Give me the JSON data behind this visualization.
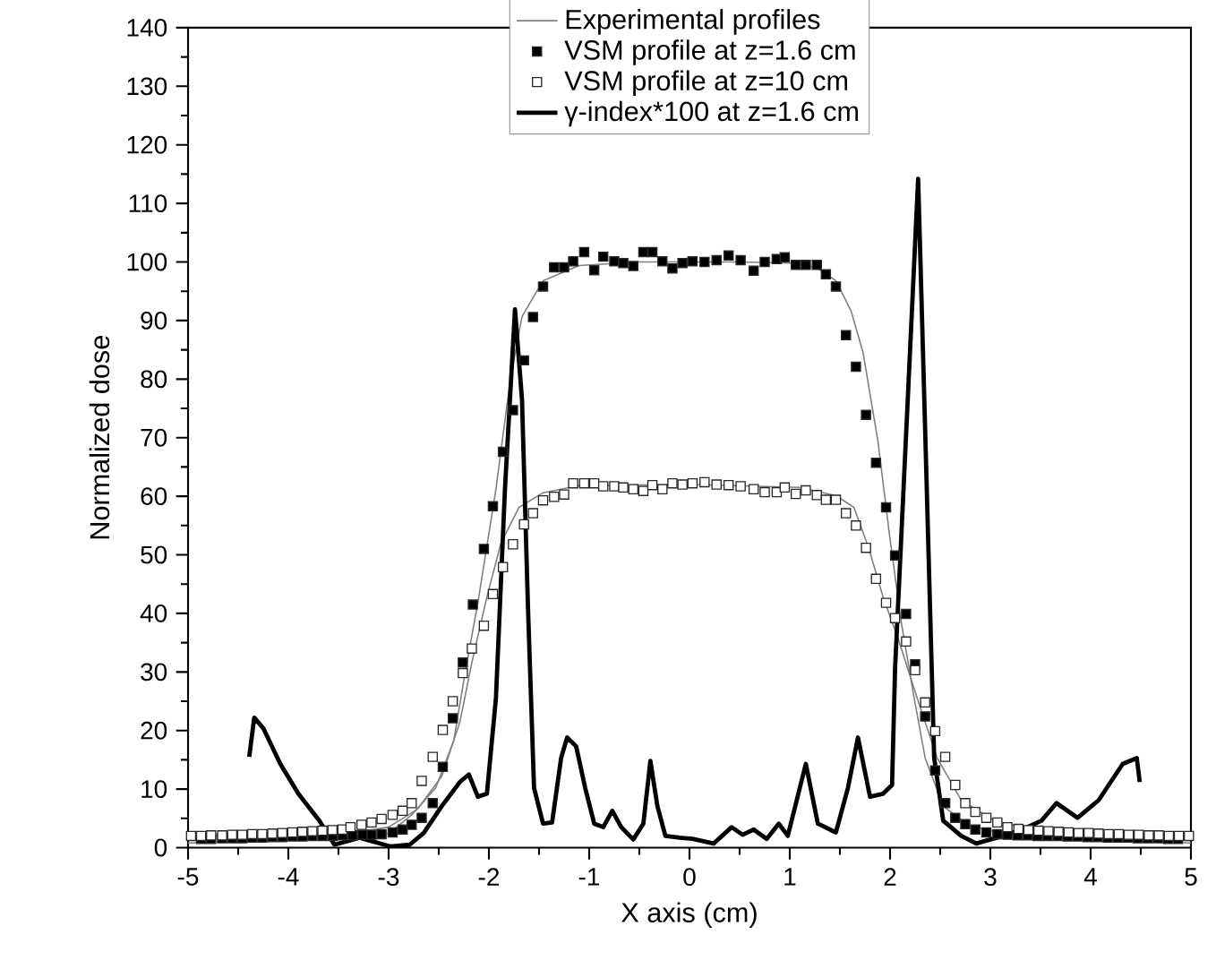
{
  "chart_data": {
    "type": "line",
    "xlabel": "X axis (cm)",
    "ylabel": "Normalized dose",
    "xlim": [
      -5,
      5
    ],
    "ylim": [
      0,
      140
    ],
    "xticks": [
      -5,
      -4,
      -3,
      -2,
      -1,
      0,
      1,
      2,
      3,
      4,
      5
    ],
    "yticks": [
      0,
      10,
      20,
      30,
      40,
      50,
      60,
      70,
      80,
      90,
      100,
      110,
      120,
      130,
      140
    ],
    "grid": false,
    "legend": "top",
    "series": [
      {
        "name": "Experimental profiles",
        "color": "#808080",
        "x": [
          -5,
          -4,
          -3.5,
          -3,
          -2.77,
          -2.53,
          -2.35,
          -2.23,
          -2.11,
          -1.93,
          -1.79,
          -1.67,
          -1.46,
          -1.1,
          -0.5,
          0.5,
          1.0,
          1.27,
          1.46,
          1.61,
          1.73,
          1.88,
          1.99,
          2.11,
          2.23,
          2.35,
          2.53,
          2.77,
          3.07,
          3.5,
          4,
          5
        ],
        "values": [
          0.8,
          1.3,
          1.8,
          2.4,
          5.6,
          10.2,
          18.3,
          30.6,
          41.8,
          61.2,
          79.5,
          90.7,
          96.8,
          99.4,
          100,
          100,
          99.8,
          99,
          96.8,
          91.7,
          84.6,
          69.3,
          54,
          38.7,
          26.5,
          15.3,
          7.1,
          3.9,
          2.6,
          2,
          1.4,
          0.8
        ]
      },
      {
        "color": "#808080",
        "x": [
          -5,
          -4,
          -3.5,
          -3,
          -2.71,
          -2.47,
          -2.29,
          -2.17,
          -2.02,
          -1.88,
          -1.7,
          -1.46,
          -1.1,
          0,
          1.1,
          1.46,
          1.64,
          1.79,
          1.93,
          2.08,
          2.29,
          2.47,
          2.71,
          3.07,
          3.48,
          4,
          5
        ],
        "values": [
          2.0,
          2.0,
          2.2,
          3.5,
          6.6,
          12.2,
          21.4,
          31.6,
          42.8,
          52,
          58.1,
          60.6,
          61.8,
          62,
          61.5,
          60.1,
          58.1,
          51,
          42.8,
          35.7,
          24.5,
          15.3,
          8.1,
          4.3,
          3.1,
          2.3,
          2.0
        ]
      },
      {
        "name": "VSM profile at z=1.6 cm",
        "type": "scatter",
        "marker": "square",
        "color": "#000000",
        "x": [
          -4.87,
          -4.77,
          -4.66,
          -4.56,
          -4.46,
          -4.36,
          -4.26,
          -4.16,
          -4.06,
          -3.96,
          -3.86,
          -3.76,
          -3.66,
          -3.56,
          -3.46,
          -3.36,
          -3.26,
          -3.17,
          -3.07,
          -2.96,
          -2.86,
          -2.77,
          -2.67,
          -2.56,
          -2.46,
          -2.36,
          -2.26,
          -2.16,
          -2.05,
          -1.96,
          -1.86,
          -1.76,
          -1.65,
          -1.56,
          -1.46,
          -1.35,
          -1.25,
          -1.16,
          -1.05,
          -0.95,
          -0.86,
          -0.75,
          -0.66,
          -0.56,
          -0.46,
          -0.37,
          -0.27,
          -0.17,
          -0.07,
          0.03,
          0.15,
          0.27,
          0.39,
          0.51,
          0.64,
          0.75,
          0.87,
          0.95,
          1.06,
          1.16,
          1.27,
          1.36,
          1.46,
          1.56,
          1.66,
          1.76,
          1.86,
          1.96,
          2.05,
          2.16,
          2.25,
          2.35,
          2.45,
          2.55,
          2.65,
          2.75,
          2.85,
          2.96,
          3.07,
          3.17,
          3.27,
          3.37,
          3.47,
          3.57,
          3.67,
          3.77,
          3.87,
          3.97,
          4.07,
          4.17,
          4.27,
          4.37,
          4.47,
          4.57,
          4.67,
          4.77,
          4.87
        ],
        "values": [
          1.5,
          1.5,
          1.6,
          1.6,
          1.6,
          1.7,
          1.7,
          1.8,
          1.8,
          1.9,
          1.9,
          2.0,
          2.0,
          2.0,
          2.1,
          2.1,
          2.2,
          2.2,
          2.3,
          2.6,
          3.1,
          3.9,
          5.1,
          7.6,
          13.8,
          22.1,
          31.6,
          41.5,
          51,
          58.3,
          67.6,
          74.7,
          83.2,
          90.6,
          95.8,
          99.1,
          99.1,
          100.1,
          101.7,
          98.6,
          100.9,
          100.1,
          99.8,
          99.3,
          101.7,
          101.7,
          100.1,
          98.9,
          99.8,
          100.1,
          100,
          100.3,
          101.1,
          100.3,
          98.5,
          100,
          100.5,
          100.8,
          99.5,
          99.5,
          99.5,
          97.9,
          95.8,
          87.5,
          82.1,
          73.9,
          65.7,
          58.1,
          49.9,
          39.9,
          31.3,
          22.4,
          13.2,
          7.6,
          5.1,
          4.0,
          3.1,
          2.6,
          2.3,
          2.2,
          2.1,
          2.1,
          2.0,
          2.0,
          2.0,
          1.9,
          1.9,
          1.8,
          1.8,
          1.7,
          1.7,
          1.7,
          1.6,
          1.6,
          1.6,
          1.5,
          1.5
        ]
      },
      {
        "name": "VSM profile at z=10 cm",
        "type": "scatter",
        "marker": "square",
        "color": "#ffffff",
        "x": [
          -4.97,
          -4.87,
          -4.77,
          -4.66,
          -4.56,
          -4.46,
          -4.36,
          -4.26,
          -4.16,
          -4.06,
          -3.96,
          -3.86,
          -3.76,
          -3.66,
          -3.56,
          -3.46,
          -3.38,
          -3.27,
          -3.17,
          -3.07,
          -2.96,
          -2.86,
          -2.77,
          -2.67,
          -2.56,
          -2.46,
          -2.36,
          -2.26,
          -2.17,
          -2.05,
          -1.96,
          -1.86,
          -1.76,
          -1.65,
          -1.56,
          -1.46,
          -1.35,
          -1.25,
          -1.16,
          -1.05,
          -0.95,
          -0.86,
          -0.75,
          -0.66,
          -0.56,
          -0.46,
          -0.37,
          -0.27,
          -0.17,
          -0.07,
          0.03,
          0.15,
          0.27,
          0.39,
          0.51,
          0.64,
          0.75,
          0.87,
          0.95,
          1.06,
          1.16,
          1.27,
          1.36,
          1.46,
          1.56,
          1.66,
          1.76,
          1.86,
          1.96,
          2.05,
          2.16,
          2.25,
          2.35,
          2.45,
          2.55,
          2.65,
          2.75,
          2.85,
          2.96,
          3.07,
          3.17,
          3.28,
          3.38,
          3.48,
          3.58,
          3.68,
          3.78,
          3.88,
          3.98,
          4.08,
          4.18,
          4.28,
          4.38,
          4.48,
          4.58,
          4.68,
          4.78,
          4.88,
          4.98
        ],
        "values": [
          2.0,
          2.0,
          2.1,
          2.1,
          2.2,
          2.2,
          2.3,
          2.3,
          2.4,
          2.5,
          2.6,
          2.7,
          2.8,
          2.9,
          3.0,
          3.1,
          3.5,
          3.9,
          4.3,
          4.9,
          5.6,
          6.3,
          7.6,
          11.4,
          15.5,
          20.1,
          25,
          29.8,
          34,
          37.9,
          43.3,
          47.9,
          51.8,
          55.2,
          57.1,
          59.3,
          59.9,
          60.3,
          62.2,
          62.2,
          62.2,
          61.7,
          61.7,
          61.5,
          61.2,
          60.9,
          61.9,
          61.2,
          62.2,
          62,
          62.2,
          62.4,
          62,
          61.9,
          61.7,
          61.2,
          60.7,
          60.7,
          61.5,
          60.4,
          61,
          60.2,
          59.4,
          59.4,
          57.1,
          55,
          51.2,
          45.9,
          41.8,
          39.2,
          35.2,
          30.3,
          24.8,
          19.9,
          15.5,
          10.7,
          7.6,
          6.1,
          5.1,
          4.3,
          3.5,
          3.2,
          3.0,
          2.9,
          2.8,
          2.7,
          2.6,
          2.5,
          2.5,
          2.4,
          2.3,
          2.3,
          2.2,
          2.2,
          2.1,
          2.1,
          2.0,
          2.0,
          2.0
        ]
      },
      {
        "name": "γ-index*100 at z=1.6 cm",
        "color": "#000000",
        "x": [
          -4.39,
          -4.34,
          -4.25,
          -4.08,
          -3.9,
          -3.69,
          -3.54,
          -3.29,
          -2.98,
          -2.79,
          -2.65,
          -2.47,
          -2.29,
          -2.2,
          -2.11,
          -2.02,
          -1.93,
          -1.84,
          -1.74,
          -1.67,
          -1.61,
          -1.55,
          -1.46,
          -1.37,
          -1.28,
          -1.22,
          -1.13,
          -1.04,
          -0.95,
          -0.86,
          -0.77,
          -0.68,
          -0.56,
          -0.46,
          -0.39,
          -0.32,
          -0.24,
          -0.1,
          0.03,
          0.24,
          0.42,
          0.53,
          0.64,
          0.77,
          0.89,
          0.98,
          1.16,
          1.28,
          1.46,
          1.58,
          1.68,
          1.8,
          1.93,
          2.02,
          2.05,
          2.28,
          2.35,
          2.44,
          2.53,
          2.71,
          2.86,
          3.0,
          3.24,
          3.51,
          3.66,
          3.87,
          4.08,
          4.32,
          4.46,
          4.49
        ],
        "values": [
          15.5,
          22.2,
          20.4,
          14.3,
          9.2,
          4.6,
          0.5,
          1.7,
          0.2,
          0.5,
          2.5,
          7.1,
          11.2,
          12.5,
          8.7,
          9.2,
          25.5,
          61.2,
          91.9,
          76.5,
          40.8,
          10.2,
          4.1,
          4.3,
          15.3,
          18.8,
          17.3,
          10.2,
          4.1,
          3.5,
          6.3,
          3.5,
          1.4,
          4.1,
          14.8,
          7.1,
          2.0,
          1.7,
          1.5,
          0.7,
          3.5,
          2.2,
          3.1,
          1.5,
          4.1,
          2.0,
          14.3,
          4.1,
          2.6,
          10.2,
          18.8,
          8.7,
          9.2,
          10.7,
          30.6,
          114.2,
          71.3,
          15.3,
          4.6,
          2.0,
          0.7,
          1.4,
          2.5,
          4.6,
          7.6,
          5.1,
          8.1,
          14.3,
          15.3,
          11.2
        ]
      }
    ]
  }
}
